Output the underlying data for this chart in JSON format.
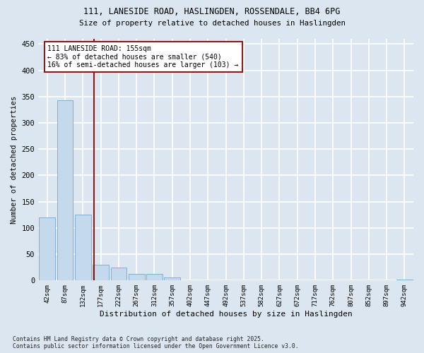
{
  "title1": "111, LANESIDE ROAD, HASLINGDEN, ROSSENDALE, BB4 6PG",
  "title2": "Size of property relative to detached houses in Haslingden",
  "xlabel": "Distribution of detached houses by size in Haslingden",
  "ylabel": "Number of detached properties",
  "footnote": "Contains HM Land Registry data © Crown copyright and database right 2025.\nContains public sector information licensed under the Open Government Licence v3.0.",
  "categories": [
    "42sqm",
    "87sqm",
    "132sqm",
    "177sqm",
    "222sqm",
    "267sqm",
    "312sqm",
    "357sqm",
    "402sqm",
    "447sqm",
    "492sqm",
    "537sqm",
    "582sqm",
    "627sqm",
    "672sqm",
    "717sqm",
    "762sqm",
    "807sqm",
    "852sqm",
    "897sqm",
    "942sqm"
  ],
  "values": [
    120,
    343,
    125,
    30,
    25,
    13,
    12,
    6,
    1,
    0,
    0,
    0,
    1,
    0,
    0,
    0,
    0,
    0,
    0,
    0,
    2
  ],
  "bar_color": "#c5d9ed",
  "bar_edge_color": "#7fb0d5",
  "background_color": "#dce6f0",
  "grid_color": "#ffffff",
  "annotation_line1": "111 LANESIDE ROAD: 155sqm",
  "annotation_line2": "← 83% of detached houses are smaller (540)",
  "annotation_line3": "16% of semi-detached houses are larger (103) →",
  "vline_x": 2.62,
  "vline_color": "#8b1a1a",
  "ann_box_color": "#8b1a1a",
  "ylim": [
    0,
    460
  ],
  "yticks": [
    0,
    50,
    100,
    150,
    200,
    250,
    300,
    350,
    400,
    450
  ]
}
